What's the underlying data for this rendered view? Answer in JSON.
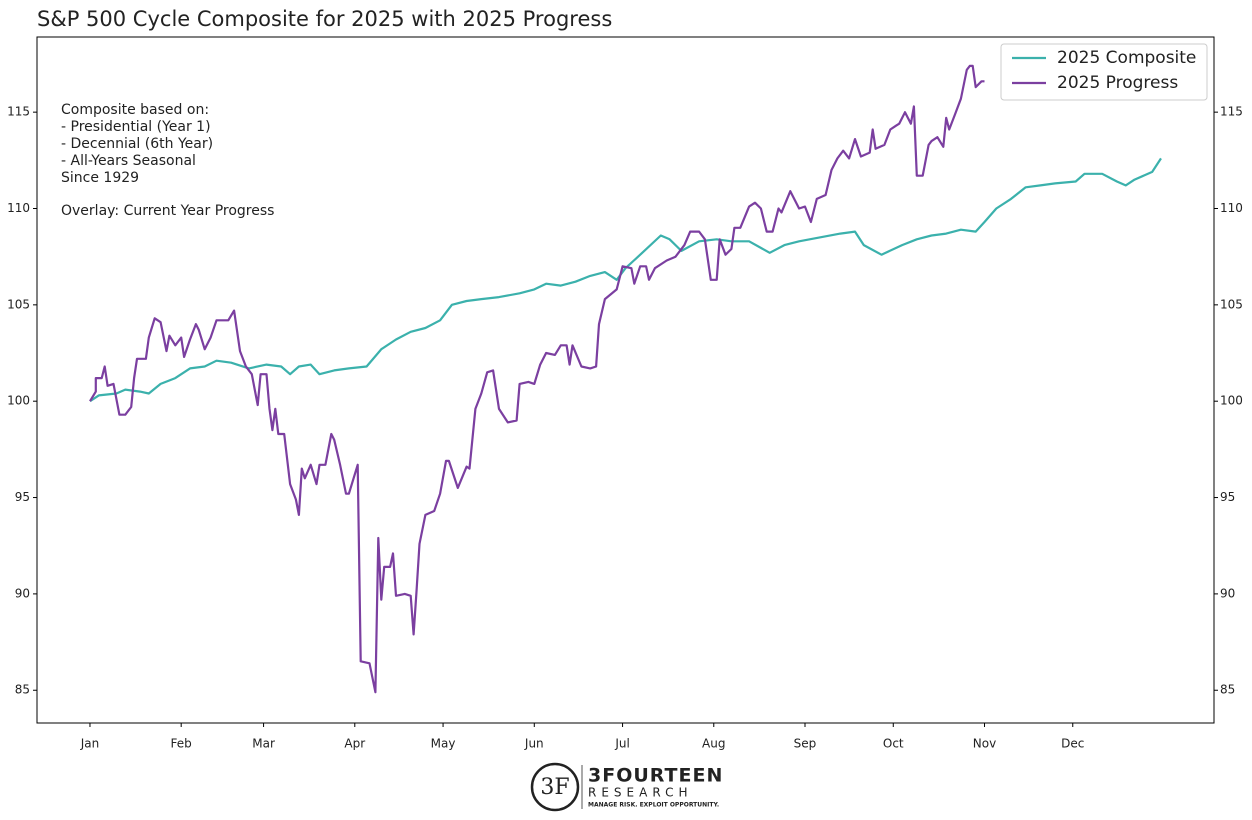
{
  "chart_data": {
    "type": "line",
    "title": "S&P 500 Cycle Composite for 2025 with 2025 Progress",
    "annotation": [
      "Composite based on:",
      "- Presidential (Year 1)",
      "- Decennial (6th Year)",
      "- All-Years Seasonal",
      "Since 1929",
      "Overlay: Current Year Progress"
    ],
    "xlim": [
      -18,
      382
    ],
    "xticks": [
      {
        "value": 0,
        "label": "Jan"
      },
      {
        "value": 31,
        "label": "Feb"
      },
      {
        "value": 59,
        "label": "Mar"
      },
      {
        "value": 90,
        "label": "Apr"
      },
      {
        "value": 120,
        "label": "May"
      },
      {
        "value": 151,
        "label": "Jun"
      },
      {
        "value": 181,
        "label": "Jul"
      },
      {
        "value": 212,
        "label": "Aug"
      },
      {
        "value": 243,
        "label": "Sep"
      },
      {
        "value": 273,
        "label": "Oct"
      },
      {
        "value": 304,
        "label": "Nov"
      },
      {
        "value": 334,
        "label": "Dec"
      }
    ],
    "ylim": [
      83.3,
      118.9
    ],
    "yticks": [
      85,
      90,
      95,
      100,
      105,
      110,
      115
    ],
    "y2lim": [
      83.3,
      118.9
    ],
    "y2ticks": [
      85,
      90,
      95,
      100,
      105,
      110,
      115
    ],
    "legend": "upper right",
    "grid": false,
    "series": [
      {
        "name": "2025 Composite",
        "color": "#3bb1ac",
        "x": [
          0,
          3,
          9,
          12,
          17,
          20,
          24,
          29,
          34,
          39,
          43,
          48,
          54,
          60,
          65,
          68,
          71,
          75,
          78,
          83,
          88,
          94,
          99,
          104,
          109,
          114,
          119,
          123,
          128,
          133,
          139,
          146,
          151,
          155,
          160,
          165,
          170,
          175,
          179,
          182,
          187,
          194,
          197,
          201,
          207,
          213,
          218,
          224,
          231,
          236,
          241,
          248,
          255,
          260,
          263,
          269,
          276,
          281,
          286,
          291,
          296,
          301,
          304,
          308,
          313,
          318,
          323,
          328,
          335,
          338,
          344,
          349,
          352,
          355,
          361,
          364
        ],
        "values": [
          100,
          100.3,
          100.4,
          100.6,
          100.5,
          100.4,
          100.9,
          101.2,
          101.7,
          101.8,
          102.1,
          102,
          101.7,
          101.9,
          101.8,
          101.4,
          101.8,
          101.9,
          101.4,
          101.6,
          101.7,
          101.8,
          102.7,
          103.2,
          103.6,
          103.8,
          104.2,
          105,
          105.2,
          105.3,
          105.4,
          105.6,
          105.8,
          106.1,
          106,
          106.2,
          106.5,
          106.7,
          106.3,
          106.9,
          107.6,
          108.6,
          108.4,
          107.8,
          108.3,
          108.4,
          108.3,
          108.3,
          107.7,
          108.1,
          108.3,
          108.5,
          108.7,
          108.8,
          108.1,
          107.6,
          108.1,
          108.4,
          108.6,
          108.7,
          108.9,
          108.8,
          109.3,
          110,
          110.5,
          111.1,
          111.2,
          111.3,
          111.4,
          111.8,
          111.8,
          111.4,
          111.2,
          111.5,
          111.9,
          112.6
        ]
      },
      {
        "name": "2025 Progress",
        "color": "#7b3fa0",
        "x": [
          0,
          2,
          2,
          4,
          5,
          6,
          8,
          10,
          12,
          14,
          15,
          16,
          19,
          20,
          22,
          24,
          26,
          27,
          29,
          31,
          32,
          34,
          36,
          37,
          39,
          41,
          43,
          47,
          49,
          51,
          53,
          55,
          57,
          58,
          60,
          61,
          62,
          63,
          64,
          66,
          68,
          70,
          71,
          72,
          73,
          75,
          77,
          78,
          80,
          82,
          83,
          85,
          87,
          88,
          91,
          92,
          95,
          97,
          98,
          99,
          100,
          102,
          103,
          104,
          107,
          109,
          110,
          111,
          112,
          114,
          117,
          119,
          121,
          122,
          125,
          128,
          129,
          131,
          133,
          135,
          137,
          139,
          142,
          145,
          146,
          149,
          151,
          153,
          155,
          158,
          160,
          162,
          163,
          164,
          167,
          170,
          172,
          173,
          175,
          179,
          181,
          184,
          185,
          187,
          189,
          190,
          192,
          196,
          199,
          202,
          204,
          207,
          209,
          211,
          213,
          214,
          216,
          218,
          219,
          221,
          224,
          226,
          228,
          230,
          232,
          234,
          235,
          238,
          241,
          243,
          245,
          247,
          250,
          252,
          254,
          256,
          258,
          260,
          262,
          265,
          266,
          267,
          270,
          272,
          274,
          275,
          277,
          279,
          280,
          281,
          283,
          285,
          286,
          288,
          290,
          291,
          292,
          294,
          296,
          298,
          299,
          300,
          301,
          303,
          304
        ],
        "values": [
          100,
          100.5,
          101.2,
          101.2,
          101.8,
          100.8,
          100.9,
          99.3,
          99.3,
          99.7,
          101.2,
          102.2,
          102.2,
          103.3,
          104.3,
          104.1,
          102.6,
          103.4,
          102.9,
          103.3,
          102.3,
          103.2,
          104,
          103.7,
          102.7,
          103.3,
          104.2,
          104.2,
          104.7,
          102.6,
          101.8,
          101.4,
          99.8,
          101.4,
          101.4,
          99.6,
          98.5,
          99.6,
          98.3,
          98.3,
          95.7,
          94.9,
          94.1,
          96.5,
          96,
          96.7,
          95.7,
          96.7,
          96.7,
          98.3,
          98,
          96.7,
          95.2,
          95.2,
          96.7,
          86.5,
          86.4,
          84.9,
          92.9,
          89.7,
          91.4,
          91.4,
          92.1,
          89.9,
          90,
          89.9,
          87.9,
          90.2,
          92.6,
          94.1,
          94.3,
          95.2,
          96.9,
          96.9,
          95.5,
          96.6,
          96.5,
          99.6,
          100.4,
          101.5,
          101.6,
          99.6,
          98.9,
          99,
          100.9,
          101,
          100.9,
          101.9,
          102.5,
          102.4,
          102.9,
          102.9,
          101.9,
          102.9,
          101.8,
          101.7,
          101.8,
          104,
          105.3,
          105.8,
          107,
          106.9,
          106.1,
          107,
          107,
          106.3,
          106.9,
          107.3,
          107.5,
          108.1,
          108.8,
          108.8,
          108.4,
          106.3,
          106.3,
          108.4,
          107.6,
          107.9,
          109,
          109,
          110.1,
          110.3,
          110,
          108.8,
          108.8,
          110,
          109.8,
          110.9,
          110,
          110.1,
          109.3,
          110.5,
          110.7,
          112,
          112.6,
          113,
          112.6,
          113.6,
          112.7,
          112.9,
          114.1,
          113.1,
          113.3,
          114.1,
          114.3,
          114.4,
          115,
          114.4,
          115.3,
          111.7,
          111.7,
          113.3,
          113.5,
          113.7,
          113.2,
          114.7,
          114.1,
          114.9,
          115.7,
          117.2,
          117.4,
          117.4,
          116.3,
          116.6,
          116.6
        ]
      }
    ]
  },
  "logo": {
    "mark": "3F",
    "name": "3FOURTEEN",
    "sub": "RESEARCH",
    "tagline": "MANAGE RISK. EXPLOIT OPPORTUNITY."
  }
}
